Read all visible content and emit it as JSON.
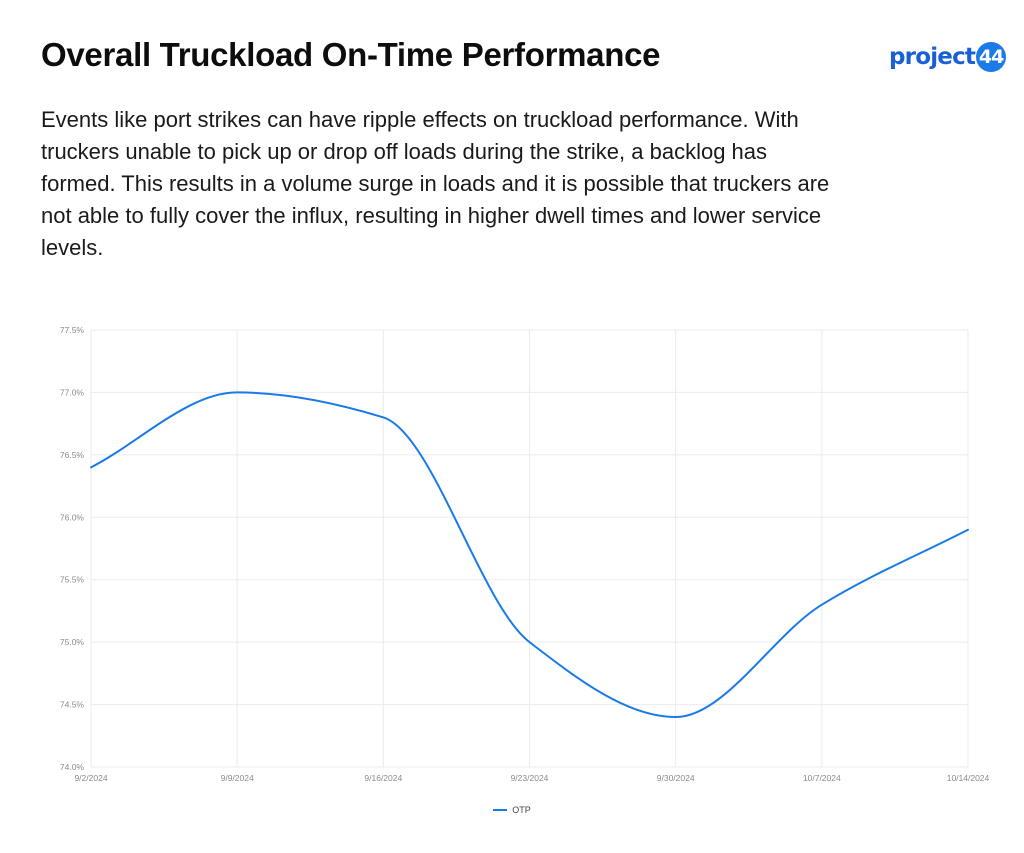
{
  "header": {
    "title": "Overall Truckload On-Time Performance",
    "description": "Events like port strikes can have ripple effects on truckload performance. With truckers unable to pick up or drop off loads during the strike, a backlog has formed. This results in a volume surge in loads and it is possible that truckers are not able to fully cover the influx, resulting in higher dwell times and lower service levels."
  },
  "logo": {
    "text": "project",
    "badge": "44",
    "color": "#1a7ae8",
    "text_color": "#1a5fd6"
  },
  "chart_data": {
    "type": "line",
    "x": [
      "9/2/2024",
      "9/9/2024",
      "9/16/2024",
      "9/23/2024",
      "9/30/2024",
      "10/7/2024",
      "10/14/2024"
    ],
    "series": [
      {
        "name": "OTP",
        "values": [
          76.4,
          77.0,
          76.8,
          75.0,
          74.4,
          75.3,
          75.9
        ],
        "color": "#1a7ae8"
      }
    ],
    "ylim": [
      74.0,
      77.5
    ],
    "yticks": [
      "74.0%",
      "74.5%",
      "75.0%",
      "75.5%",
      "76.0%",
      "76.5%",
      "77.0%",
      "77.5%"
    ],
    "grid": true,
    "smooth": true,
    "legend_position": "bottom-center"
  }
}
